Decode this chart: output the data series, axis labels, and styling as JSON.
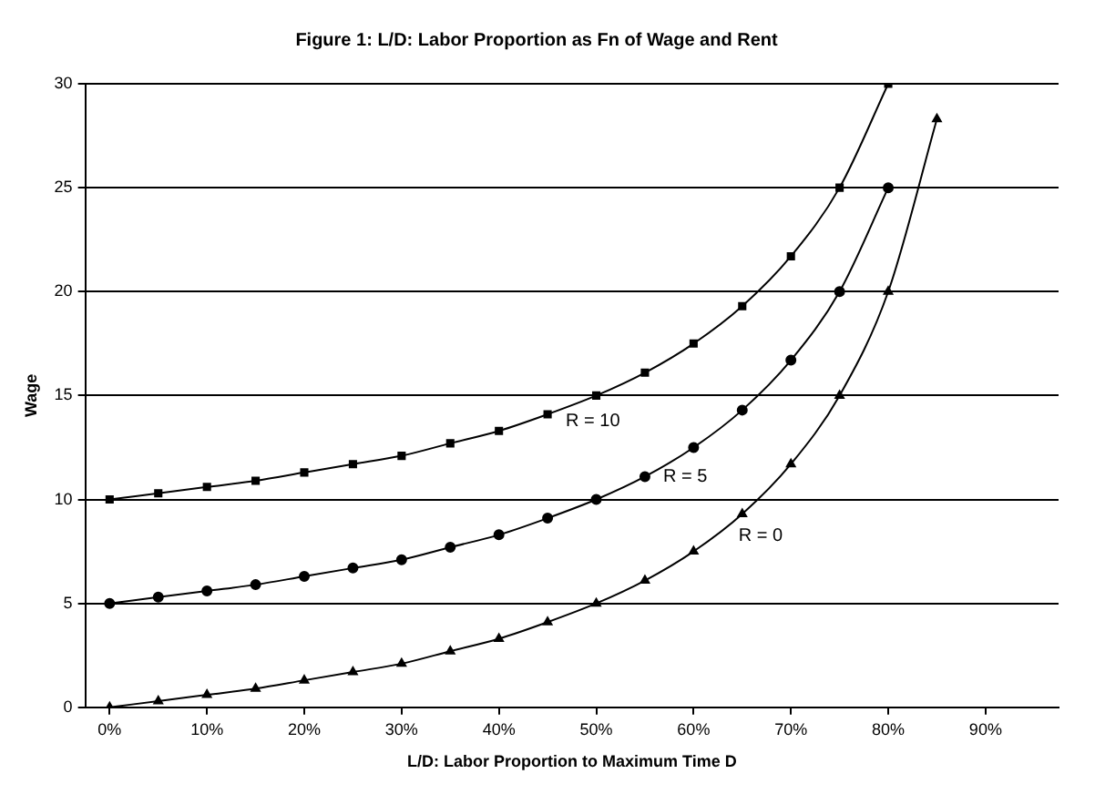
{
  "chart_data": {
    "type": "line",
    "title": "Figure 1: L/D: Labor Proportion as Fn of Wage and Rent",
    "xlabel": "L/D: Labor Proportion to Maximum Time D",
    "ylabel": "Wage",
    "x": [
      0,
      5,
      10,
      15,
      20,
      25,
      30,
      35,
      40,
      45,
      50,
      55,
      60,
      65,
      70,
      75,
      80,
      85
    ],
    "series": [
      {
        "name": "R = 0",
        "color": "#000000",
        "marker": "triangle",
        "values": [
          0,
          0.3,
          0.6,
          0.9,
          1.3,
          1.7,
          2.1,
          2.7,
          3.3,
          4.1,
          5,
          6.1,
          7.5,
          9.3,
          11.7,
          15,
          20,
          28.3
        ]
      },
      {
        "name": "R = 5",
        "color": "#000000",
        "marker": "circle",
        "values": [
          5,
          5.3,
          5.6,
          5.9,
          6.3,
          6.7,
          7.1,
          7.7,
          8.3,
          9.1,
          10,
          11.1,
          12.5,
          14.3,
          16.7,
          20,
          25,
          null
        ]
      },
      {
        "name": "R = 10",
        "color": "#000000",
        "marker": "square",
        "values": [
          10,
          10.3,
          10.6,
          10.9,
          11.3,
          11.7,
          12.1,
          12.7,
          13.3,
          14.1,
          15,
          16.1,
          17.5,
          19.3,
          21.7,
          25,
          30,
          null
        ]
      }
    ],
    "xlim": [
      -2.5,
      97.5
    ],
    "xticks": [
      {
        "value": 0,
        "label": "0%"
      },
      {
        "value": 10,
        "label": "10%"
      },
      {
        "value": 20,
        "label": "20%"
      },
      {
        "value": 30,
        "label": "30%"
      },
      {
        "value": 40,
        "label": "40%"
      },
      {
        "value": 50,
        "label": "50%"
      },
      {
        "value": 60,
        "label": "60%"
      },
      {
        "value": 70,
        "label": "70%"
      },
      {
        "value": 80,
        "label": "80%"
      },
      {
        "value": 90,
        "label": "90%"
      }
    ],
    "ylim": [
      0,
      30
    ],
    "yticks": [
      0,
      5,
      10,
      15,
      20,
      25,
      30
    ],
    "grid": "y",
    "legend": false,
    "line_style": "solid"
  }
}
